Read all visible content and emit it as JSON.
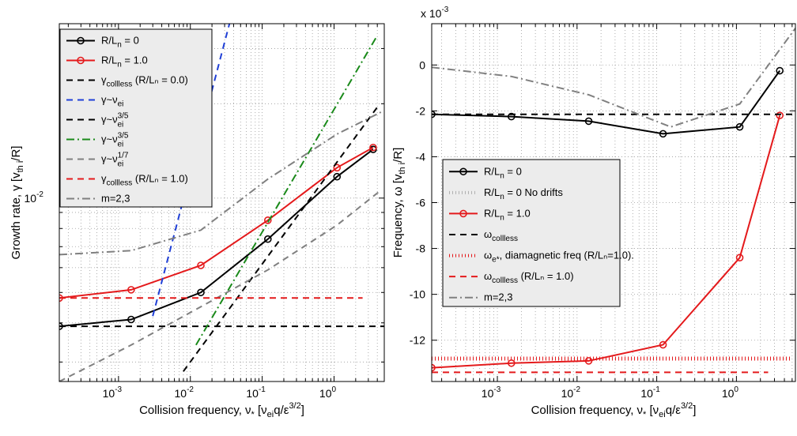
{
  "chart_data": [
    {
      "type": "line",
      "panel": "left",
      "xscale": "log",
      "yscale": "log",
      "xlim": [
        0.00015,
        5.0
      ],
      "ylim": [
        0.0026,
        0.036
      ],
      "xlabel": "Collision frequency, ν* [νei q/ε^3/2]",
      "ylabel": "Growth rate, γ [vth i/R]",
      "x_ticks": [
        {
          "value": 0.001,
          "base": "10",
          "exp": "-3"
        },
        {
          "value": 0.01,
          "base": "10",
          "exp": "-2"
        },
        {
          "value": 0.1,
          "base": "10",
          "exp": "-1"
        },
        {
          "value": 1,
          "base": "10",
          "exp": "0"
        }
      ],
      "y_ticks": [
        {
          "value": 0.01,
          "base": "10",
          "exp": "-2"
        }
      ],
      "grid": true,
      "legend": {
        "position": "top-left"
      },
      "series": [
        {
          "key": "rln0",
          "name": "R/Ln = 0",
          "label_main": "R/L",
          "label_sub": "n",
          "label_tail": " = 0",
          "color": "#000000",
          "dash": "solid",
          "marker": true,
          "x": [
            0.00015,
            0.0015,
            0.014,
            0.12,
            1.1,
            3.5
          ],
          "y": [
            0.0039,
            0.0041,
            0.005,
            0.0074,
            0.0117,
            0.0143
          ]
        },
        {
          "key": "rln1",
          "name": "R/Ln = 1.0",
          "label_main": "R/L",
          "label_sub": "n",
          "label_tail": " = 1.0",
          "color": "#e41a1c",
          "dash": "solid",
          "marker": true,
          "x": [
            0.00015,
            0.0015,
            0.014,
            0.12,
            1.1,
            3.5
          ],
          "y": [
            0.0048,
            0.0051,
            0.0061,
            0.0085,
            0.0125,
            0.0145
          ]
        },
        {
          "key": "gcollless0",
          "name": "γcollless (R/Ln = 0.0)",
          "label_main": "γ",
          "label_sub": "collless",
          "label_tail": " (R/Lₙ = 0.0)",
          "color": "#000000",
          "dash": "8,6",
          "marker": false,
          "x": [
            0.00015,
            5.0
          ],
          "y": [
            0.0039,
            0.0039
          ]
        },
        {
          "key": "gnu",
          "name": "γ~νei",
          "label_main": "γ~ν",
          "label_sub": "ei",
          "label_tail": "",
          "color": "#1f3fd6",
          "dash": "8,6",
          "marker": false,
          "x": [
            0.003,
            0.035
          ],
          "y": [
            0.0042,
            0.036
          ]
        },
        {
          "key": "gnu35",
          "name": "γ~νei^3/5",
          "label_main": "γ~ν",
          "label_sub": "ei",
          "label_sup": "3/5",
          "label_tail": "",
          "color": "#000000",
          "dash": "8,6",
          "marker": false,
          "x": [
            0.008,
            4.0
          ],
          "y": [
            0.0028,
            0.0195
          ]
        },
        {
          "key": "gnu35g",
          "name": "γ~νei^3/5",
          "label_main": "γ~ν",
          "label_sub": "ei",
          "label_sup": "3/5",
          "label_tail": "",
          "color": "#1a8a1a",
          "dash": "10,4,2,4",
          "marker": false,
          "x": [
            0.012,
            4.0
          ],
          "y": [
            0.0034,
            0.033
          ]
        },
        {
          "key": "gnu17",
          "name": "γ~νei^1/7",
          "label_main": "γ~ν",
          "label_sub": "ei",
          "label_sup": "1/7",
          "label_tail": "",
          "color": "#808080",
          "dash": "8,6",
          "marker": false,
          "x": [
            0.00015,
            0.0015,
            0.014,
            0.12,
            1.1,
            4.5
          ],
          "y": [
            0.0026,
            0.0034,
            0.0045,
            0.0059,
            0.0082,
            0.0106
          ]
        },
        {
          "key": "gcollless1",
          "name": "γcollless (R/Ln = 1.0)",
          "label_main": "γ",
          "label_sub": "collless",
          "label_tail": " (R/Lₙ = 1.0)",
          "color": "#e41a1c",
          "dash": "8,6",
          "marker": false,
          "x": [
            0.00015,
            2.5
          ],
          "y": [
            0.0048,
            0.0048
          ]
        },
        {
          "key": "m23",
          "name": "m=2,3",
          "label_main": "m=2,3",
          "label_sub": "",
          "label_tail": "",
          "color": "#808080",
          "dash": "10,4,2,4",
          "marker": false,
          "x": [
            0.00015,
            0.0015,
            0.014,
            0.12,
            1.1,
            4.5
          ],
          "y": [
            0.0066,
            0.0068,
            0.0079,
            0.0115,
            0.016,
            0.0188
          ]
        }
      ]
    },
    {
      "type": "line",
      "panel": "right",
      "xscale": "log",
      "yscale": "linear",
      "xlim": [
        0.00015,
        5.5
      ],
      "ylim": [
        -0.0138,
        0.0018
      ],
      "multiplier": {
        "base": "x 10",
        "exp": "-3"
      },
      "xlabel": "Collision frequency, ν* [νei q/ε^3/2]",
      "ylabel": "Frequency, ω [vth i/R]",
      "x_ticks": [
        {
          "value": 0.001,
          "base": "10",
          "exp": "-3"
        },
        {
          "value": 0.01,
          "base": "10",
          "exp": "-2"
        },
        {
          "value": 0.1,
          "base": "10",
          "exp": "-1"
        },
        {
          "value": 1,
          "base": "10",
          "exp": "0"
        }
      ],
      "y_ticks": [
        {
          "value": 0,
          "label": "0"
        },
        {
          "value": -0.002,
          "label": "-2"
        },
        {
          "value": -0.004,
          "label": "-4"
        },
        {
          "value": -0.006,
          "label": "-6"
        },
        {
          "value": -0.008,
          "label": "-8"
        },
        {
          "value": -0.01,
          "label": "-10"
        },
        {
          "value": -0.012,
          "label": "-12"
        }
      ],
      "grid": true,
      "legend": {
        "position": "center-left"
      },
      "series": [
        {
          "key": "w0",
          "name": "R/Ln = 0",
          "label_main": "R/L",
          "label_sub": "n",
          "label_tail": " = 0",
          "color": "#000000",
          "dash": "solid",
          "marker": true,
          "x": [
            0.00015,
            0.0015,
            0.014,
            0.12,
            1.1,
            3.5
          ],
          "y": [
            -0.00215,
            -0.00225,
            -0.00245,
            -0.003,
            -0.0027,
            -0.00025
          ]
        },
        {
          "key": "w0nd",
          "name": "R/Ln = 0 No drifts",
          "label_main": "R/L",
          "label_sub": "n",
          "label_tail": " = 0 No drifts",
          "color": "#b0b0b0",
          "dash": "1,3",
          "marker": false,
          "x": [],
          "y": []
        },
        {
          "key": "w1",
          "name": "R/Ln = 1.0",
          "label_main": "R/L",
          "label_sub": "n",
          "label_tail": " = 1.0",
          "color": "#e41a1c",
          "dash": "solid",
          "marker": true,
          "x": [
            0.00015,
            0.0015,
            0.014,
            0.12,
            1.1,
            3.5
          ],
          "y": [
            -0.0132,
            -0.013,
            -0.0129,
            -0.0122,
            -0.0084,
            -0.0022
          ]
        },
        {
          "key": "wcoll",
          "name": "ωcollless",
          "label_main": "ω",
          "label_sub": "collless",
          "label_tail": "",
          "color": "#000000",
          "dash": "8,6",
          "marker": false,
          "x": [
            0.00015,
            5.5
          ],
          "y": [
            -0.00215,
            -0.00215
          ]
        },
        {
          "key": "wdia",
          "name": "ωe*, diamagnetic freq (R/Ln=1.0).",
          "label_main": "ω",
          "label_sub": "e*",
          "label_tail": ", diamagnetic freq (R/Lₙ=1.0).",
          "color": "#e41a1c",
          "dash": "1,3",
          "marker": false,
          "x": [
            0.00015,
            5.0
          ],
          "y": [
            -0.0128,
            -0.0128
          ]
        },
        {
          "key": "wcoll1",
          "name": "ωcollless (R/Ln = 1.0)",
          "label_main": "ω",
          "label_sub": "collless",
          "label_tail": " (R/Lₙ = 1.0)",
          "color": "#e41a1c",
          "dash": "8,6",
          "marker": false,
          "x": [
            0.00015,
            2.5
          ],
          "y": [
            -0.0134,
            -0.0134
          ]
        },
        {
          "key": "wm23",
          "name": "m=2,3",
          "label_main": "m=2,3",
          "label_sub": "",
          "label_tail": "",
          "color": "#808080",
          "dash": "10,4,2,4",
          "marker": false,
          "x": [
            0.00015,
            0.0015,
            0.014,
            0.15,
            1.1,
            5.5
          ],
          "y": [
            -0.0001,
            -0.0005,
            -0.0013,
            -0.0027,
            -0.0017,
            0.0016
          ]
        }
      ]
    }
  ]
}
